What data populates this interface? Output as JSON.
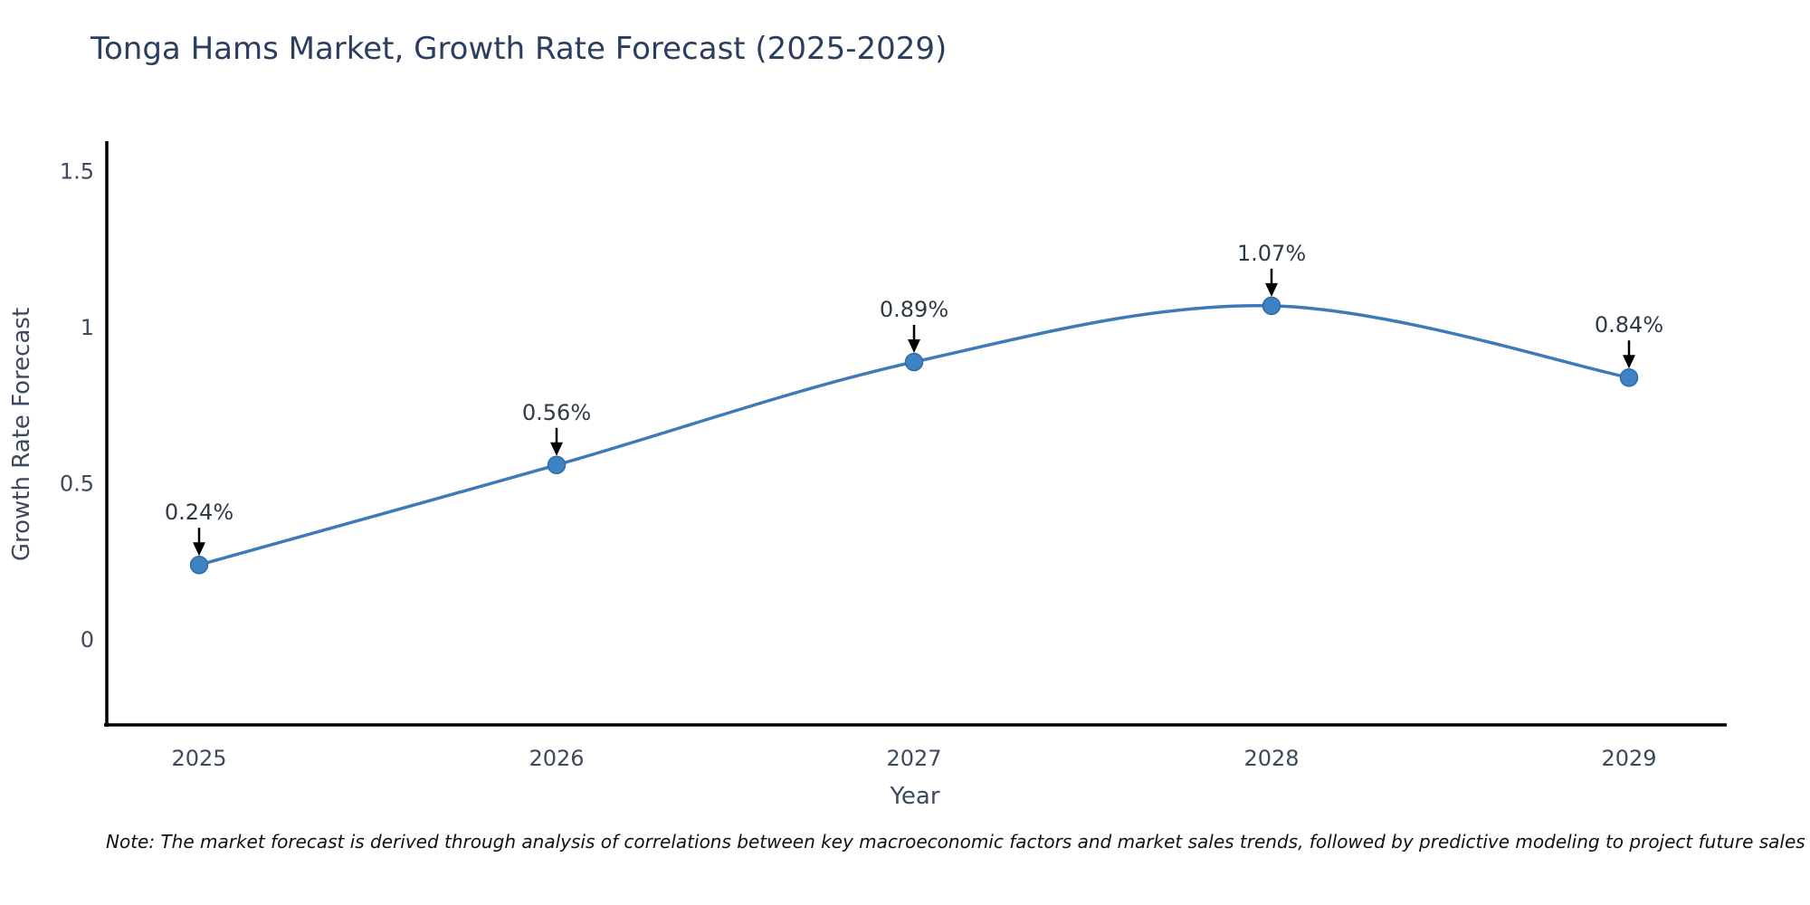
{
  "title": "Tonga Hams Market, Growth Rate Forecast (2025-2029)",
  "note": "Note: The market forecast is derived through analysis of correlations between key macroeconomic factors and market sales trends, followed by predictive modeling to project future sales",
  "chart_data": {
    "type": "line",
    "title": "Tonga Hams Market, Growth Rate Forecast (2025-2029)",
    "x": [
      2025,
      2026,
      2027,
      2028,
      2029
    ],
    "values": [
      0.24,
      0.56,
      0.89,
      1.07,
      0.84
    ],
    "point_labels": [
      "0.24%",
      "0.56%",
      "0.89%",
      "1.07%",
      "0.84%"
    ],
    "xtick_labels": [
      "2025",
      "2026",
      "2027",
      "2028",
      "2029"
    ],
    "yticks": [
      0,
      0.5,
      1,
      1.5
    ],
    "ytick_labels": [
      "0",
      "0.5",
      "1",
      "1.5"
    ],
    "xlabel": "Year",
    "ylabel": "Growth Rate Forecast",
    "ylim": [
      -0.28,
      1.58
    ],
    "grid": false,
    "legend": "none",
    "line_style": "spline",
    "annotations": "value labels with downward black arrows above each point"
  },
  "colors": {
    "line": "#3c7bb7",
    "marker": "#3f82c4",
    "marker_edge": "#2e6ca8",
    "axis": "#000000",
    "title_text": "#2a3f5f",
    "tick_text": "#3c4a5d",
    "annotation_text": "#2f3a47",
    "arrow": "#000000",
    "note_text": "#111111",
    "background": "#ffffff"
  }
}
